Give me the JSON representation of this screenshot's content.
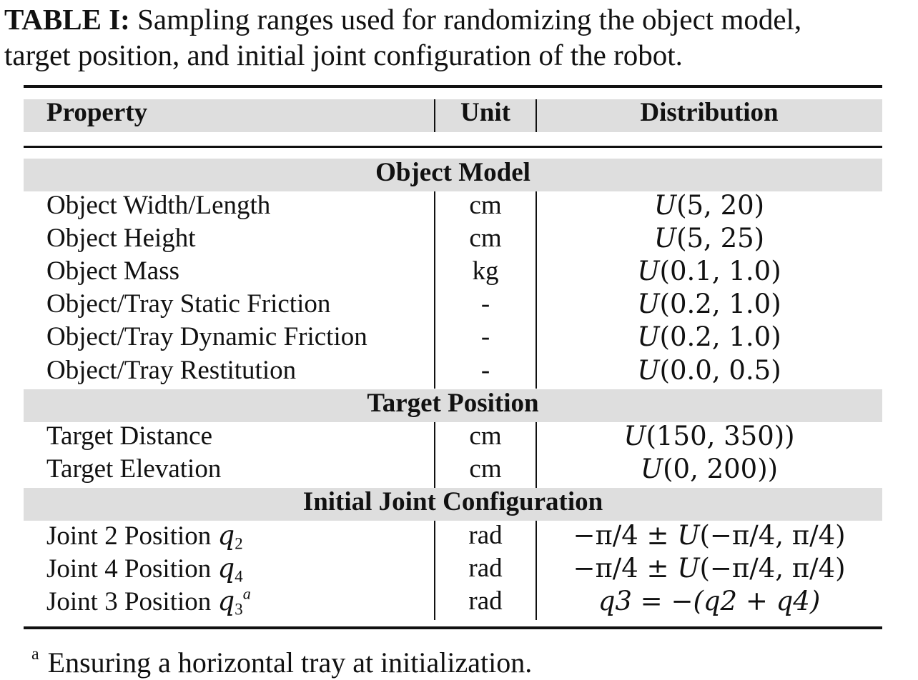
{
  "caption": {
    "label": "TABLE I:",
    "line1": "Sampling ranges used for randomizing the object model,",
    "line2": "target position, and initial joint configuration of the robot."
  },
  "table": {
    "headers": {
      "property": "Property",
      "unit": "Unit",
      "distribution": "Distribution"
    },
    "sections": [
      {
        "title": "Object Model",
        "rows": [
          {
            "property": "Object Width/Length",
            "unit": "cm",
            "distribution": "(5, 20)"
          },
          {
            "property": "Object Height",
            "unit": "cm",
            "distribution": "(5, 25)"
          },
          {
            "property": "Object Mass",
            "unit": "kg",
            "distribution": "(0.1, 1.0)"
          },
          {
            "property": "Object/Tray Static Friction",
            "unit": "-",
            "distribution": "(0.2, 1.0)"
          },
          {
            "property": "Object/Tray Dynamic Friction",
            "unit": "-",
            "distribution": "(0.2, 1.0)"
          },
          {
            "property": "Object/Tray Restitution",
            "unit": "-",
            "distribution": "(0.0, 0.5)"
          }
        ]
      },
      {
        "title": "Target Position",
        "rows": [
          {
            "property": "Target Distance",
            "unit": "cm",
            "distribution": "(150, 350))"
          },
          {
            "property": "Target Elevation",
            "unit": "cm",
            "distribution": "(0, 200))"
          }
        ]
      },
      {
        "title": "Initial Joint Configuration",
        "rows": [
          {
            "property": "Joint 2 Position",
            "symbol": "q",
            "sub": "2",
            "unit": "rad",
            "dist_prefix": "−π/4 ± ",
            "distribution": "(−π/4, π/4)"
          },
          {
            "property": "Joint 4 Position",
            "symbol": "q",
            "sub": "4",
            "unit": "rad",
            "dist_prefix": "−π/4 ± ",
            "distribution": "(−π/4, π/4)"
          },
          {
            "property": "Joint 3 Position",
            "symbol": "q",
            "sub": "3",
            "sup": "a",
            "unit": "rad",
            "distribution": "q3 = −(q2 + q4)"
          }
        ]
      }
    ],
    "uniform_symbol": "U"
  },
  "footnote": {
    "mark": "a",
    "text": "Ensuring a horizontal tray at initialization."
  }
}
